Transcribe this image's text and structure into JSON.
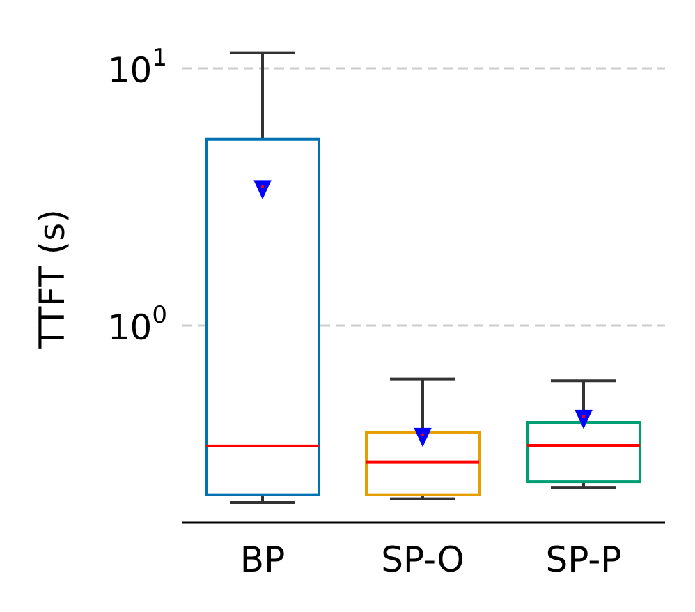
{
  "chart_data": {
    "type": "box",
    "ylabel": "TTFT (s)",
    "xlabel": "",
    "y_scale": "log",
    "ylim": [
      0.19,
      12.5
    ],
    "y_ticks": [
      {
        "value": 1,
        "base": "10",
        "exp": "0"
      },
      {
        "value": 10,
        "base": "10",
        "exp": "1"
      }
    ],
    "grid": "horizontal dashed at major ticks",
    "categories": [
      "BP",
      "SP-O",
      "SP-P"
    ],
    "boxes": [
      {
        "label": "BP",
        "whisker_low": 0.205,
        "q1": 0.22,
        "median": 0.34,
        "q3": 5.3,
        "whisker_high": 11.5,
        "mean": 3.4,
        "color": "#0072b2"
      },
      {
        "label": "SP-O",
        "whisker_low": 0.212,
        "q1": 0.22,
        "median": 0.295,
        "q3": 0.385,
        "whisker_high": 0.62,
        "mean": 0.37,
        "color": "#e69f00"
      },
      {
        "label": "SP-P",
        "whisker_low": 0.235,
        "q1": 0.247,
        "median": 0.342,
        "q3": 0.42,
        "whisker_high": 0.61,
        "mean": 0.435,
        "color": "#009e73"
      }
    ],
    "median_color": "#ff0000",
    "mean_marker_color": "#0000ff",
    "whisker_color": "#333333",
    "grid_color": "#cccccc"
  }
}
